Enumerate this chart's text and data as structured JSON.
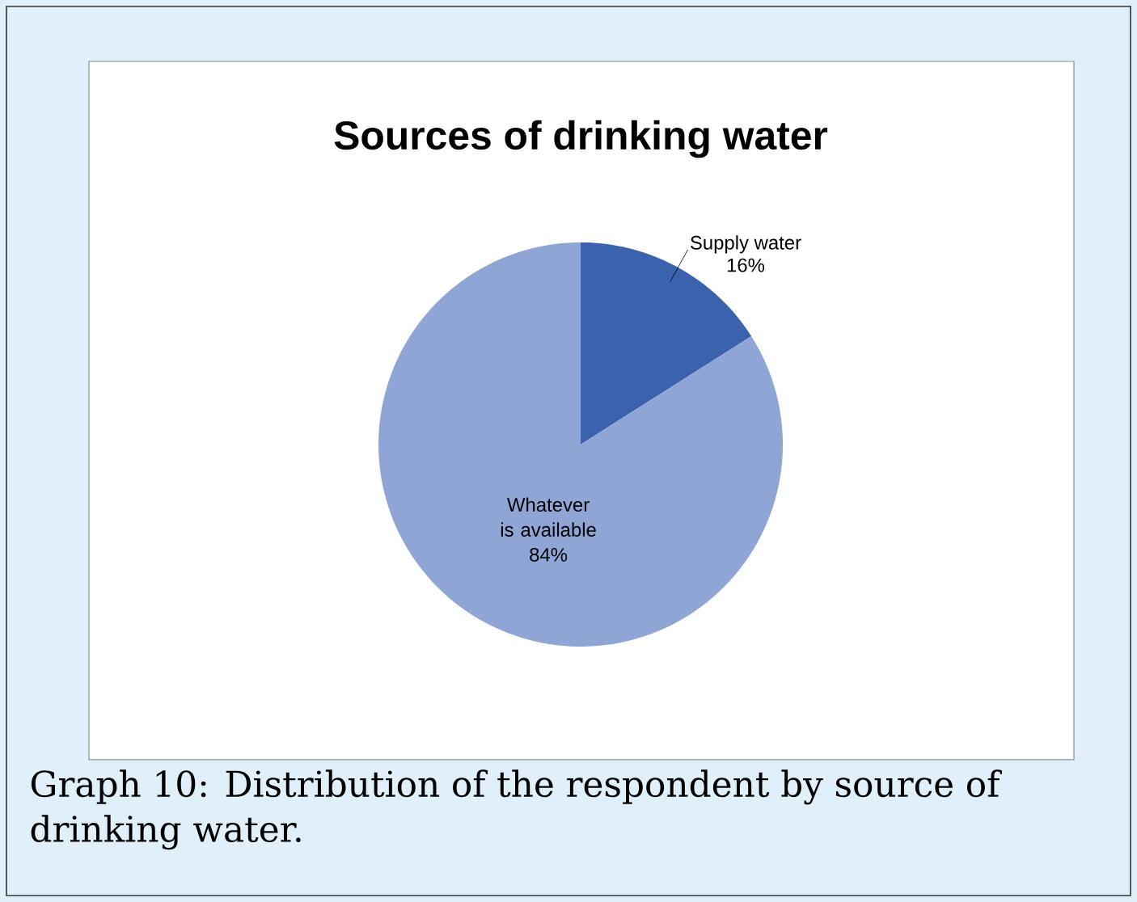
{
  "chart_data": {
    "type": "pie",
    "title": "Sources of drinking water",
    "categories": [
      "Supply water",
      "Whatever is available"
    ],
    "values": [
      16,
      84
    ],
    "value_labels": [
      "16%",
      "84%"
    ],
    "colors": [
      "#3a62ad",
      "#8fa5d6"
    ],
    "annotations": [
      "Graph 10: Distribution of the respondent by source of drinking water."
    ]
  }
}
